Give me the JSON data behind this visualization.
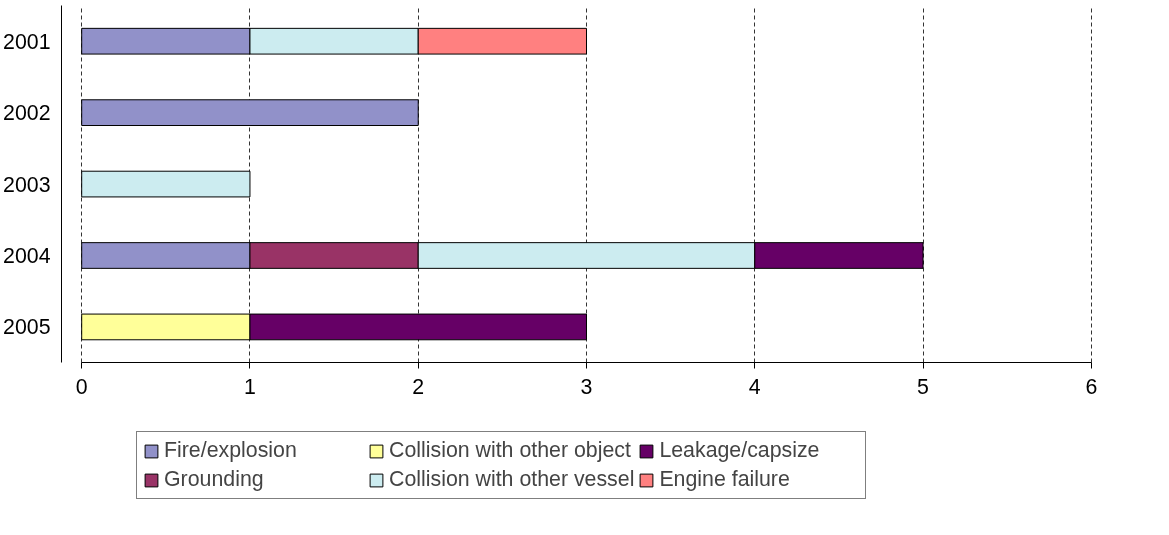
{
  "chart_data": {
    "type": "bar",
    "orientation": "horizontal",
    "stacked": true,
    "categories": [
      "2001",
      "2002",
      "2003",
      "2004",
      "2005"
    ],
    "series": [
      {
        "name": "Fire/explosion",
        "color": "#9191c9",
        "values": [
          1,
          2,
          null,
          1,
          null
        ]
      },
      {
        "name": "Grounding",
        "color": "#993366",
        "values": [
          null,
          null,
          null,
          1,
          null
        ]
      },
      {
        "name": "Collision with other object",
        "color": "#ffff99",
        "values": [
          null,
          null,
          null,
          null,
          1
        ]
      },
      {
        "name": "Collision with other vessel",
        "color": "#ccecf0",
        "values": [
          1,
          null,
          1,
          2,
          null
        ]
      },
      {
        "name": "Leakage/capsize",
        "color": "#660066",
        "values": [
          null,
          null,
          null,
          1,
          2
        ]
      },
      {
        "name": "Engine failure",
        "color": "#ff8080",
        "values": [
          1,
          null,
          null,
          null,
          null
        ]
      }
    ],
    "xlim": [
      0,
      6
    ],
    "xticks": [
      0,
      1,
      2,
      3,
      4,
      5,
      6
    ],
    "grid": "x",
    "legend": "bottom"
  }
}
